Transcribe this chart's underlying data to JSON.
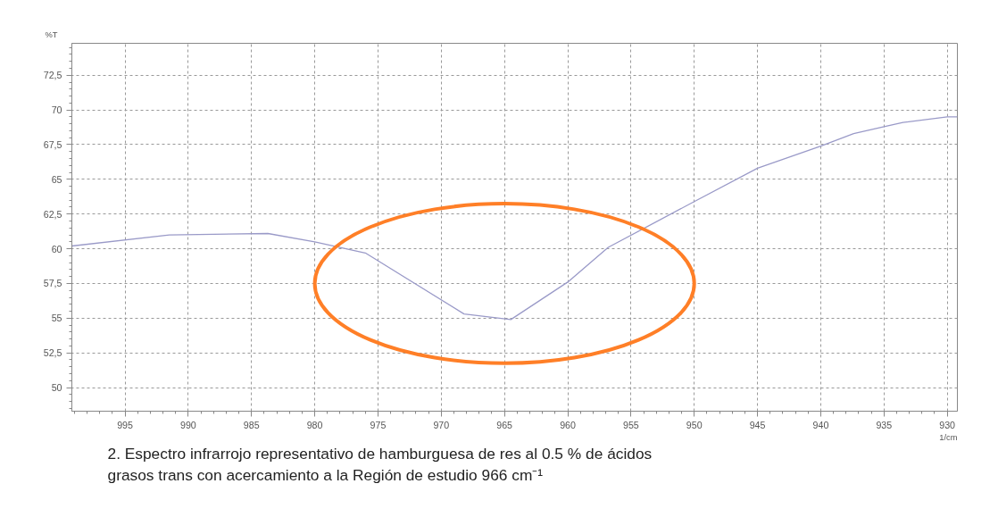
{
  "chart_data": {
    "type": "line",
    "xlabel": "1/cm",
    "ylabel": "%T",
    "x": [
      999.2,
      991.5,
      983.7,
      980,
      976.0,
      968.2,
      964.5,
      960,
      956.8,
      950,
      945,
      940,
      937.4,
      935,
      933.5,
      930,
      929.2
    ],
    "series": [
      {
        "color": "#9a9ac8",
        "values": [
          60.2,
          61.0,
          61.1,
          60.5,
          59.7,
          55.3,
          54.9,
          57.6,
          60.1,
          63.4,
          65.8,
          67.4,
          68.3,
          68.8,
          69.1,
          69.5,
          69.5
        ]
      }
    ],
    "xlim": [
      999.2,
      929.2
    ],
    "ylim": [
      48.3,
      74.8
    ],
    "xticks": [
      995,
      990,
      985,
      980,
      975,
      970,
      965,
      960,
      955,
      950,
      945,
      940,
      935,
      930
    ],
    "yticks": [
      50,
      {
        "value": 52.5,
        "label": "52,5"
      },
      55,
      {
        "value": 57.5,
        "label": "57,5"
      },
      60,
      {
        "value": 62.5,
        "label": "62,5"
      },
      65,
      {
        "value": 67.5,
        "label": "67,5"
      },
      70,
      {
        "value": 72.5,
        "label": "72,5"
      }
    ],
    "grid": true,
    "marker": "none",
    "line_style": "solid",
    "annotations": [
      "2.   Espectro infrarrojo representativo de hamburguesa de res al 0.5 % de ácidos grasos trans con acercamiento a la Región de estudio 966 cm⁻¹"
    ]
  }
}
